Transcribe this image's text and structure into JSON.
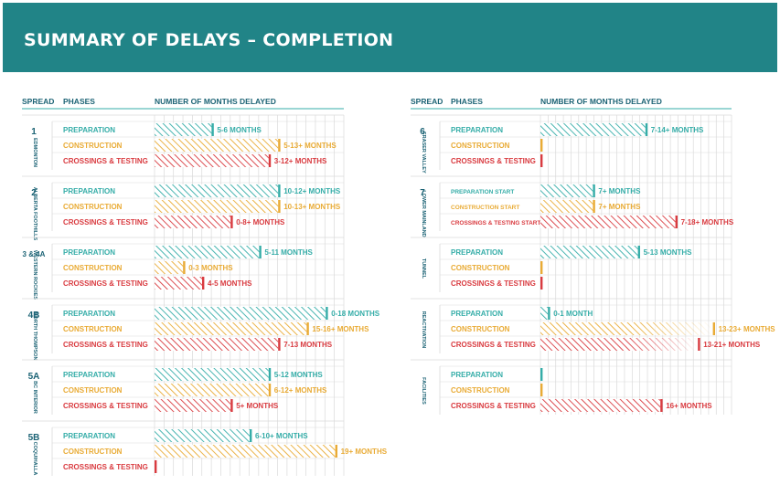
{
  "page": {
    "title": "SUMMARY OF DELAYS – COMPLETION"
  },
  "colors": {
    "banner": "#218487",
    "preparation": "#35ada8",
    "construction": "#e9ab35",
    "crossings": "#d93b40",
    "grid": "#dadada",
    "header_rule": "#35ada8",
    "spread_text": "#1c6375"
  },
  "chart_data": {
    "type": "bar",
    "title": "SUMMARY OF DELAYS – COMPLETION",
    "value_unit": "months delayed (bar end read off gridlines; label text as printed)",
    "columns": [
      {
        "headers": {
          "spread": "SPREAD",
          "phases": "PHASES",
          "months": "NUMBER OF MONTHS DELAYED"
        },
        "spreads": [
          {
            "spread": "1",
            "location": "EDMONTON",
            "rows": [
              {
                "phase": "PREPARATION",
                "category": "preparation",
                "value": 6,
                "label": "5-6 MONTHS"
              },
              {
                "phase": "CONSTRUCTION",
                "category": "construction",
                "value": 13,
                "label": "5-13+ MONTHS"
              },
              {
                "phase": "CROSSINGS & TESTING",
                "category": "crossings",
                "value": 12,
                "label": "3-12+ MONTHS"
              }
            ]
          },
          {
            "spread": "2",
            "location": "ALBERTA FOOTHILLS",
            "rows": [
              {
                "phase": "PREPARATION",
                "category": "preparation",
                "value": 13,
                "label": "10-12+ MONTHS"
              },
              {
                "phase": "CONSTRUCTION",
                "category": "construction",
                "value": 13,
                "label": "10-13+ MONTHS"
              },
              {
                "phase": "CROSSINGS & TESTING",
                "category": "crossings",
                "value": 8,
                "label": "0-8+ MONTHS"
              }
            ]
          },
          {
            "spread": "3 & 4A",
            "location": "WESTERN ROCKIES",
            "rows": [
              {
                "phase": "PREPARATION",
                "category": "preparation",
                "value": 11,
                "label": "5-11 MONTHS"
              },
              {
                "phase": "CONSTRUCTION",
                "category": "construction",
                "value": 3,
                "label": "0-3 MONTHS"
              },
              {
                "phase": "CROSSINGS & TESTING",
                "category": "crossings",
                "value": 5,
                "label": "4-5 MONTHS"
              }
            ]
          },
          {
            "spread": "4B",
            "location": "NORTH THOMPSON",
            "rows": [
              {
                "phase": "PREPARATION",
                "category": "preparation",
                "value": 18,
                "label": "0-18 MONTHS"
              },
              {
                "phase": "CONSTRUCTION",
                "category": "construction",
                "value": 16,
                "label": "15-16+ MONTHS"
              },
              {
                "phase": "CROSSINGS & TESTING",
                "category": "crossings",
                "value": 13,
                "label": "7-13 MONTHS"
              }
            ]
          },
          {
            "spread": "5A",
            "location": "BC INTERIOR",
            "rows": [
              {
                "phase": "PREPARATION",
                "category": "preparation",
                "value": 12,
                "label": "5-12 MONTHS"
              },
              {
                "phase": "CONSTRUCTION",
                "category": "construction",
                "value": 12,
                "label": "6-12+ MONTHS"
              },
              {
                "phase": "CROSSINGS & TESTING",
                "category": "crossings",
                "value": 8,
                "label": "5+ MONTHS"
              }
            ]
          },
          {
            "spread": "5B",
            "location": "COQUIHALLA",
            "rows": [
              {
                "phase": "PREPARATION",
                "category": "preparation",
                "value": 10,
                "label": "6-10+ MONTHS"
              },
              {
                "phase": "CONSTRUCTION",
                "category": "construction",
                "value": 19,
                "label": "19+ MONTHS"
              },
              {
                "phase": "CROSSINGS & TESTING",
                "category": "crossings",
                "value": 0,
                "label": ""
              }
            ]
          }
        ]
      },
      {
        "headers": {
          "spread": "SPREAD",
          "phases": "PHASES",
          "months": "NUMBER OF MONTHS DELAYED"
        },
        "spreads": [
          {
            "spread": "6",
            "location": "FRASER VALLEY",
            "rows": [
              {
                "phase": "PREPARATION",
                "category": "preparation",
                "value": 14,
                "label": "7-14+ MONTHS"
              },
              {
                "phase": "CONSTRUCTION",
                "category": "construction",
                "value": 0,
                "label": ""
              },
              {
                "phase": "CROSSINGS & TESTING",
                "category": "crossings",
                "value": 0,
                "label": ""
              }
            ]
          },
          {
            "spread": "7",
            "location": "LOWER MAINLAND",
            "small_phase_text": true,
            "rows": [
              {
                "phase": "PREPARATION START",
                "category": "preparation",
                "value": 7,
                "label": "7+ MONTHS"
              },
              {
                "phase": "CONSTRUCTION START",
                "category": "construction",
                "value": 7,
                "label": "7+ MONTHS"
              },
              {
                "phase": "CROSSINGS & TESTING START",
                "category": "crossings",
                "value": 18,
                "label": "7-18+ MONTHS"
              }
            ]
          },
          {
            "spread": "",
            "location": "TUNNEL",
            "rows": [
              {
                "phase": "PREPARATION",
                "category": "preparation",
                "value": 13,
                "label": "5-13 MONTHS"
              },
              {
                "phase": "CONSTRUCTION",
                "category": "construction",
                "value": 0,
                "label": ""
              },
              {
                "phase": "CROSSINGS & TESTING",
                "category": "crossings",
                "value": 0,
                "label": ""
              }
            ]
          },
          {
            "spread": "",
            "location": "REACTIVATION",
            "rows": [
              {
                "phase": "PREPARATION",
                "category": "preparation",
                "value": 1,
                "label": "0-1 MONTH"
              },
              {
                "phase": "CONSTRUCTION",
                "category": "construction",
                "value": 23,
                "label": "13-23+ MONTHS",
                "fade": true
              },
              {
                "phase": "CROSSINGS & TESTING",
                "category": "crossings",
                "value": 21,
                "label": "13-21+ MONTHS",
                "fade": true
              }
            ]
          },
          {
            "spread": "",
            "location": "FACILITIES",
            "rows": [
              {
                "phase": "PREPARATION",
                "category": "preparation",
                "value": 0,
                "label": ""
              },
              {
                "phase": "CONSTRUCTION",
                "category": "construction",
                "value": 0,
                "label": ""
              },
              {
                "phase": "CROSSINGS & TESTING",
                "category": "crossings",
                "value": 16,
                "label": "16+ MONTHS"
              }
            ]
          }
        ]
      }
    ]
  }
}
